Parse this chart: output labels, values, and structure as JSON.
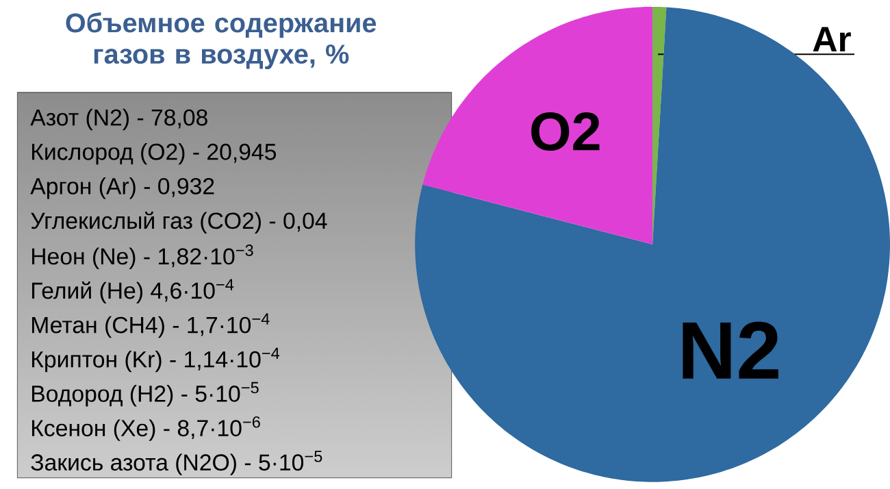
{
  "chart_data": {
    "type": "pie",
    "title": "Объемное содержание газов в воздухе, %",
    "categories": [
      "Ar",
      "N2",
      "O2"
    ],
    "values": [
      0.932,
      78.08,
      20.945
    ],
    "colors": [
      "#7ab648",
      "#2f6aa0",
      "#e03fd6"
    ],
    "annotations": [
      "Азот (N2) - 78,08",
      "Кислород (O2) - 20,945",
      "Аргон (Ar) - 0,932",
      "Углекислый газ (CO2) - 0,04",
      "Неон (Ne) - 1,82·10$^{−3}$",
      "Гелий (He) 4,6·10$^{−4}$",
      "Метан (CH4) - 1,7·10$^{−4}$",
      "Криптон (Kr) - 1,14·10$^{−4}$",
      "Водород (H2) - 5·10$^{−5}$",
      "Ксенон (Xe) - 8,7·10$^{−6}$",
      "Закись азота (N2O) - 5·10$^{−5}$"
    ]
  }
}
